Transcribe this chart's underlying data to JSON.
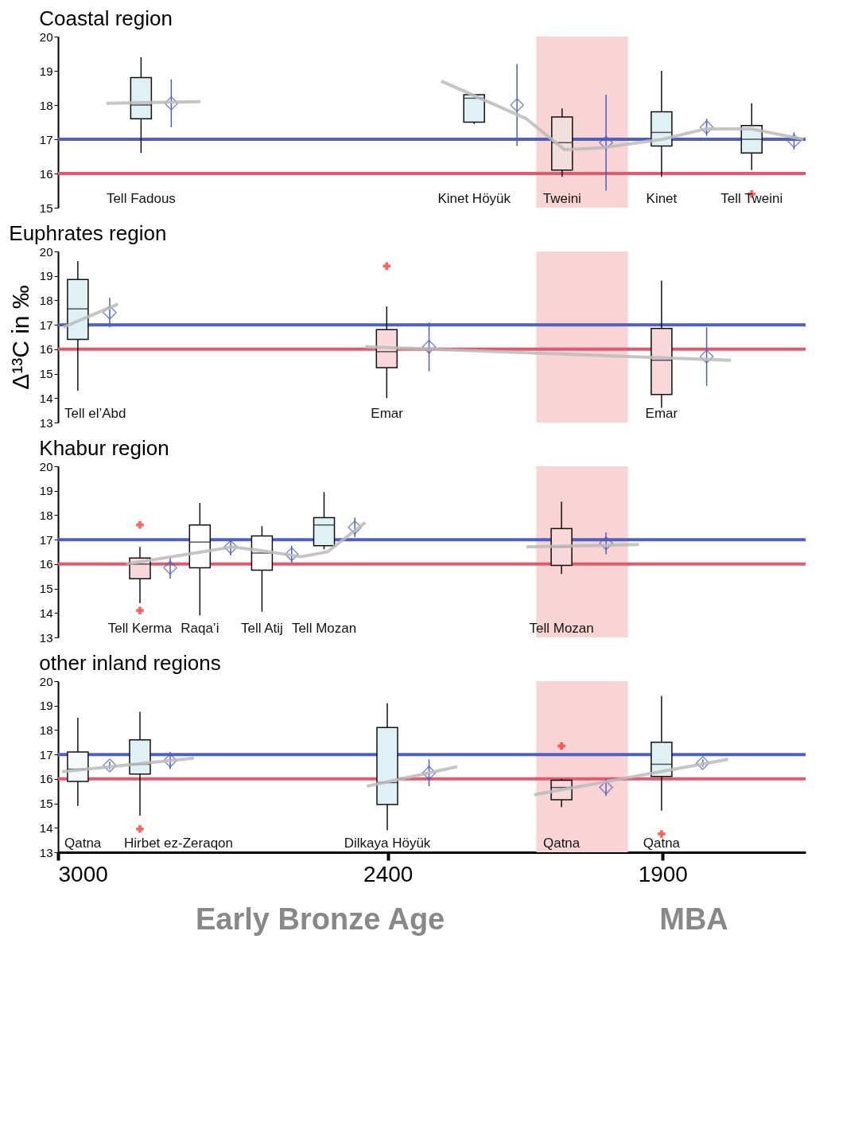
{
  "chart_data": [
    {
      "type": "box",
      "title": "Coastal region",
      "xlim": [
        3000,
        1640
      ],
      "xticks": [
        3000,
        2400,
        1900
      ],
      "ylim": [
        15,
        20
      ],
      "yticks": [
        15,
        16,
        17,
        18,
        19,
        20
      ],
      "tick_labels": "y",
      "grid": false,
      "ref_lines": [
        {
          "axis": "y",
          "value": 17,
          "color": "#5060c0"
        },
        {
          "axis": "y",
          "value": 16,
          "color": "#e05a70"
        }
      ],
      "bands": [
        {
          "axis": "x",
          "from": 2130,
          "to": 1963,
          "color": "#f9d4d4"
        }
      ],
      "annotations": [
        "Tell Fadous",
        "Kinet Höyük",
        "Tweini",
        "Kinet",
        "Tell Tweini"
      ],
      "series": [
        {
          "type": "line",
          "color": "#bbbbbb",
          "x": [
            2912,
            2741
          ],
          "values": [
            18.05,
            18.1
          ]
        },
        {
          "type": "line",
          "color": "#bbbbbb",
          "x": [
            2303,
            2148,
            2079,
            2011,
            1900,
            1823,
            1738,
            1644
          ],
          "values": [
            18.7,
            17.6,
            16.7,
            16.75,
            17.0,
            17.3,
            17.3,
            17.0
          ]
        },
        {
          "type": "box",
          "x": [
            2849,
            2243,
            2083,
            1902,
            1738
          ],
          "colors": [
            "#e0f1f6",
            "#e0f1f6",
            "#f3dede",
            "#e0f1f6",
            "#e0f1f6"
          ],
          "boxes": [
            {
              "low": 16.6,
              "q1": 17.6,
              "median": 18.0,
              "q3": 18.8,
              "high": 19.4
            },
            {
              "low": 17.45,
              "q1": 17.5,
              "median": 18.2,
              "q3": 18.3,
              "high": 18.3
            },
            {
              "low": 15.9,
              "q1": 16.1,
              "median": 16.9,
              "q3": 17.65,
              "high": 17.9
            },
            {
              "low": 15.9,
              "q1": 16.8,
              "median": 17.2,
              "q3": 17.8,
              "high": 19.0
            },
            {
              "low": 16.1,
              "q1": 16.6,
              "median": 17.0,
              "q3": 17.4,
              "high": 18.05,
              "outliers": [
                15.4
              ]
            }
          ]
        },
        {
          "type": "scatter",
          "marker": "diamond",
          "color": "#4a5fc1",
          "x": [
            2794,
            2165,
            2003,
            1820,
            1661
          ],
          "values": [
            18.05,
            18.0,
            16.9,
            17.35,
            16.95
          ],
          "errors": [
            0.7,
            1.2,
            1.4,
            0.25,
            0.25
          ]
        }
      ]
    },
    {
      "type": "box",
      "title": "Euphrates region",
      "ylabel": "Δ¹³C in ‰",
      "xlim": [
        3000,
        1640
      ],
      "xticks": [
        3000,
        2400,
        1900
      ],
      "ylim": [
        13,
        20
      ],
      "yticks": [
        13,
        14,
        15,
        16,
        17,
        18,
        19,
        20
      ],
      "tick_labels": "y",
      "grid": false,
      "ref_lines": [
        {
          "axis": "y",
          "value": 17,
          "color": "#5060c0"
        },
        {
          "axis": "y",
          "value": 16,
          "color": "#e05a70"
        }
      ],
      "bands": [
        {
          "axis": "x",
          "from": 2130,
          "to": 1963,
          "color": "#f9d4d4"
        }
      ],
      "annotations": [
        "Tell el’Abd",
        "Emar",
        "Emar"
      ],
      "series": [
        {
          "type": "line",
          "color": "#bbbbbb",
          "x": [
            2990,
            2891
          ],
          "values": [
            16.9,
            17.85
          ]
        },
        {
          "type": "line",
          "color": "#bbbbbb",
          "x": [
            2441,
            1776
          ],
          "values": [
            16.1,
            15.55
          ]
        },
        {
          "type": "box",
          "x": [
            2964,
            2402,
            1902
          ],
          "colors": [
            "#e0f1f6",
            "#f8d8da",
            "#f8d8da"
          ],
          "boxes": [
            {
              "low": 14.3,
              "q1": 16.4,
              "median": 17.65,
              "q3": 18.85,
              "high": 19.6
            },
            {
              "low": 14.0,
              "q1": 15.25,
              "median": 15.9,
              "q3": 16.8,
              "high": 17.75,
              "outliers": [
                19.4
              ]
            },
            {
              "low": 13.6,
              "q1": 14.15,
              "median": 15.55,
              "q3": 16.85,
              "high": 18.8
            }
          ]
        },
        {
          "type": "scatter",
          "marker": "diamond",
          "color": "#4a5fc1",
          "x": [
            2906,
            2325,
            1820
          ],
          "values": [
            17.5,
            16.1,
            15.7
          ],
          "errors": [
            0.6,
            1.0,
            1.2
          ]
        }
      ]
    },
    {
      "type": "box",
      "title": "Khabur region",
      "xlim": [
        3000,
        1640
      ],
      "xticks": [
        3000,
        2400,
        1900
      ],
      "ylim": [
        13,
        20
      ],
      "yticks": [
        13,
        14,
        15,
        16,
        17,
        18,
        19,
        20
      ],
      "tick_labels": "y",
      "grid": false,
      "ref_lines": [
        {
          "axis": "y",
          "value": 17,
          "color": "#5060c0"
        },
        {
          "axis": "y",
          "value": 16,
          "color": "#e05a70"
        }
      ],
      "bands": [
        {
          "axis": "x",
          "from": 2130,
          "to": 1963,
          "color": "#f9d4d4"
        }
      ],
      "annotations": [
        "Tell Kerma",
        "Raqa’i",
        "Tell Atij",
        "Tell Mozan",
        "Tell Mozan"
      ],
      "series": [
        {
          "type": "line",
          "color": "#bbbbbb",
          "x": [
            2876,
            2738,
            2684,
            2630,
            2558,
            2510,
            2441
          ],
          "values": [
            16.0,
            16.5,
            16.7,
            16.55,
            16.3,
            16.5,
            17.7
          ]
        },
        {
          "type": "line",
          "color": "#bbbbbb",
          "x": [
            2148,
            1943
          ],
          "values": [
            16.7,
            16.8
          ]
        },
        {
          "type": "box",
          "x": [
            2851,
            2742,
            2629,
            2516,
            2084
          ],
          "colors": [
            "#f8d8da",
            "#ffffff",
            "#ffffff",
            "#e0f1f6",
            "#f8d8da"
          ],
          "boxes": [
            {
              "low": 14.4,
              "q1": 15.4,
              "median": 16.0,
              "q3": 16.25,
              "high": 16.7,
              "outliers": [
                17.6,
                14.1
              ]
            },
            {
              "low": 13.9,
              "q1": 15.85,
              "median": 16.9,
              "q3": 17.6,
              "high": 18.5
            },
            {
              "low": 14.05,
              "q1": 15.75,
              "median": 16.45,
              "q3": 17.15,
              "high": 17.55
            },
            {
              "low": 16.6,
              "q1": 16.75,
              "median": 17.6,
              "q3": 17.9,
              "high": 18.95
            },
            {
              "low": 15.6,
              "q1": 15.95,
              "median": 16.7,
              "q3": 17.45,
              "high": 18.55
            }
          ]
        },
        {
          "type": "scatter",
          "marker": "diamond",
          "color": "#4a5fc1",
          "x": [
            2796,
            2686,
            2575,
            2460,
            2003
          ],
          "values": [
            15.85,
            16.7,
            16.4,
            17.5,
            16.85
          ],
          "errors": [
            0.45,
            0.35,
            0.35,
            0.4,
            0.45
          ]
        }
      ]
    },
    {
      "type": "box",
      "title": "other inland regions",
      "xlim": [
        3000,
        1640
      ],
      "xticks": [
        3000,
        2400,
        1900
      ],
      "ylim": [
        13,
        20
      ],
      "yticks": [
        13,
        14,
        15,
        16,
        17,
        18,
        19,
        20
      ],
      "grid": false,
      "ref_lines": [
        {
          "axis": "y",
          "value": 17,
          "color": "#5060c0"
        },
        {
          "axis": "y",
          "value": 16,
          "color": "#e05a70"
        }
      ],
      "bands": [
        {
          "axis": "x",
          "from": 2130,
          "to": 1963,
          "color": "#f9d4d4"
        }
      ],
      "annotations": [
        "Qatna",
        "Hirbet ez-Zeraqon",
        "Dilkaya Höyük",
        "Qatna",
        "Qatna",
        "Early Bronze Age",
        "MBA"
      ],
      "series": [
        {
          "type": "line",
          "color": "#bbbbbb",
          "x": [
            2993,
            2753
          ],
          "values": [
            16.3,
            16.85
          ]
        },
        {
          "type": "line",
          "color": "#bbbbbb",
          "x": [
            2438,
            2274
          ],
          "values": [
            15.7,
            16.5
          ]
        },
        {
          "type": "line",
          "color": "#bbbbbb",
          "x": [
            2134,
            1781
          ],
          "values": [
            15.35,
            16.8
          ]
        },
        {
          "type": "box",
          "x": [
            2964,
            2851,
            2401,
            2084,
            1902
          ],
          "colors": [
            "#f4fafc",
            "#e0f1f6",
            "#e0f1f6",
            "#f8d8da",
            "#e0f1f6"
          ],
          "boxes": [
            {
              "low": 14.9,
              "q1": 15.9,
              "median": 16.4,
              "q3": 17.1,
              "high": 18.5
            },
            {
              "low": 14.5,
              "q1": 16.2,
              "median": 16.6,
              "q3": 17.6,
              "high": 18.75,
              "outliers": [
                13.95
              ]
            },
            {
              "low": 13.9,
              "q1": 14.95,
              "median": 15.85,
              "q3": 18.1,
              "high": 19.1
            },
            {
              "low": 14.85,
              "q1": 15.15,
              "median": 15.65,
              "q3": 15.95,
              "high": 16.0,
              "outliers": [
                17.35
              ]
            },
            {
              "low": 14.7,
              "q1": 16.1,
              "median": 16.6,
              "q3": 17.5,
              "high": 19.4,
              "outliers": [
                13.75
              ]
            }
          ]
        },
        {
          "type": "scatter",
          "marker": "diamond",
          "color": "#4a5fc1",
          "x": [
            2906,
            2796,
            2325,
            2003,
            1827
          ],
          "values": [
            16.55,
            16.75,
            16.25,
            15.65,
            16.65
          ],
          "errors": [
            0.15,
            0.35,
            0.55,
            0.35,
            0.15
          ]
        }
      ]
    }
  ]
}
